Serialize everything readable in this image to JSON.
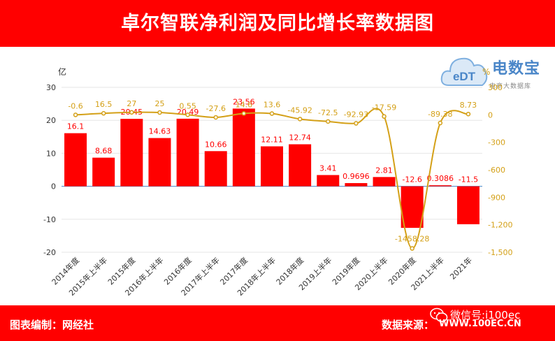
{
  "header": {
    "title": "卓尔智联净利润及同比增长率数据图"
  },
  "footer": {
    "left_text": "图表编制：网经社",
    "right_text": "数据来源：",
    "wechat_text": "微信号:i100ec",
    "url_text": "WWW.100EC.CN"
  },
  "logo": {
    "main_text": "电数宝",
    "sub_text": "电商大数据库",
    "icon_text": "eDT"
  },
  "colors": {
    "bar": "#ff0000",
    "line": "#d4a017",
    "header_bg": "#ff0000"
  },
  "chart_data": {
    "type": "bar",
    "categories": [
      "2014年度",
      "2015年上半年",
      "2015年度",
      "2016年上半年",
      "2016年度",
      "2017年上半年",
      "2017年度",
      "2018年上半年",
      "2018年度",
      "2019上半年",
      "2019年度",
      "2020上半年",
      "2020年度",
      "2021上半年",
      "2021年"
    ],
    "series": [
      {
        "type": "bar",
        "axis": "left",
        "values": [
          16.1,
          8.68,
          20.45,
          14.63,
          20.49,
          10.66,
          23.56,
          12.11,
          12.74,
          3.41,
          0.9696,
          2.81,
          -12.6,
          0.3086,
          -11.5
        ]
      },
      {
        "type": "line",
        "axis": "right",
        "values": [
          -0.6,
          16.5,
          27,
          25,
          0.55,
          -27.6,
          14.6,
          13.6,
          -45.92,
          -72.5,
          -92.93,
          -17.59,
          -1458.28,
          -89.38,
          8.73
        ]
      }
    ],
    "y_left": {
      "unit": "亿",
      "range": [
        -20,
        30
      ],
      "ticks": [
        "30",
        "20",
        "10",
        "0",
        "-10",
        "-20"
      ]
    },
    "y_right": {
      "unit": "%",
      "range": [
        -1500,
        300
      ],
      "ticks": [
        "300",
        "0",
        "-300",
        "-600",
        "-900",
        "-1,200",
        "-1,500"
      ]
    }
  }
}
